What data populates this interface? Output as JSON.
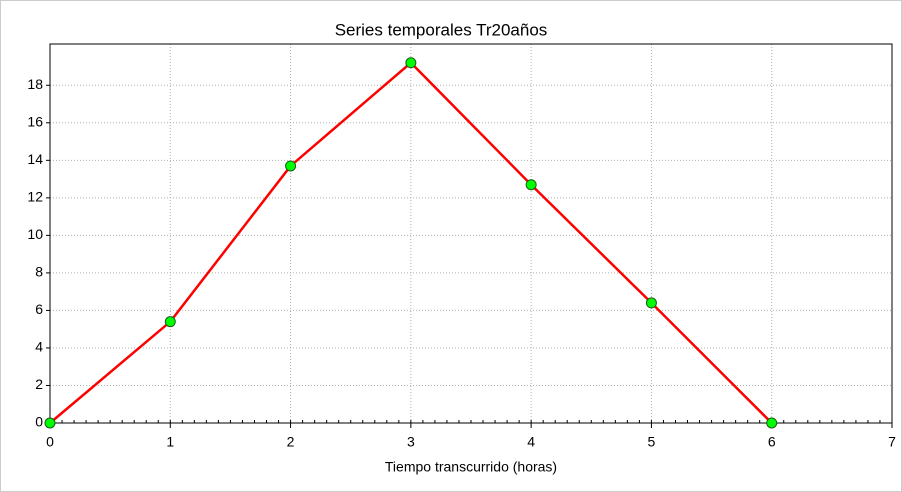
{
  "chart_data": {
    "type": "line",
    "title": "Series temporales Tr20años",
    "x_label": "Tiempo transcurrido (horas)",
    "x": [
      0,
      1,
      2,
      3,
      4,
      5,
      6
    ],
    "series": [
      {
        "color": "#ff0000",
        "marker_color": "#00ff00",
        "values": [
          0,
          5.4,
          13.7,
          19.2,
          12.7,
          6.4,
          0
        ]
      }
    ],
    "xlim": [
      0,
      7
    ],
    "xticks": [
      0,
      1,
      2,
      3,
      4,
      5,
      6,
      7
    ],
    "ylim": [
      0,
      20.2
    ],
    "yticks": [
      0,
      2,
      4,
      6,
      8,
      10,
      12,
      14,
      16,
      18
    ],
    "grid": true
  }
}
